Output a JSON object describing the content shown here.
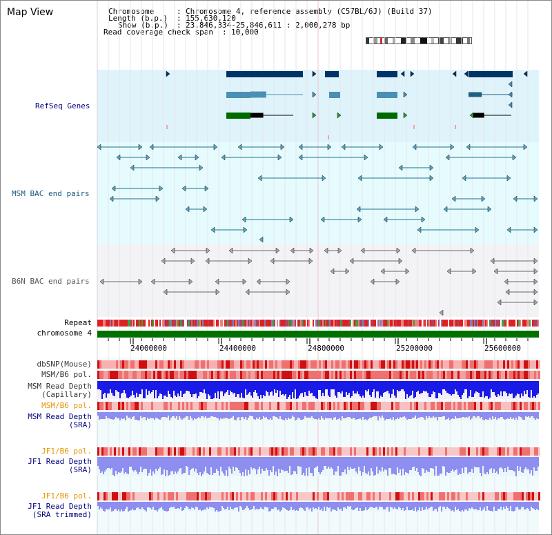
{
  "page": {
    "title": "Map View"
  },
  "header": {
    "chromosome_label": "Chromosome",
    "chromosome_value": "Chromosome 4, reference assembly (C57BL/6J) (Build 37)",
    "length_label": "Length (b.p.)",
    "length_value": "155,630,120",
    "show_label": "Show (b.p.)",
    "show_value": "23,846,334-25,846,611 : 2,000,278 bp",
    "coverage_label": "Read coverage check span",
    "coverage_value": "10,000",
    "separator": ":"
  },
  "tracks": {
    "refseq": "RefSeq Genes",
    "msm_bac": "MSM BAC end pairs",
    "b6n_bac": "B6N BAC end pairs",
    "repeat": "Repeat",
    "chromosome": "chromosome 4",
    "dbsnp": "dbSNP(Mouse)",
    "msm_b6_pol_1": "MSM/B6 pol.",
    "msm_read_depth_cap_1": "MSM Read Depth",
    "msm_read_depth_cap_2": "(Capillary)",
    "msm_b6_pol_2": "MSM/B6 pol.",
    "msm_read_depth_sra_1": "MSM Read Depth",
    "msm_read_depth_sra_2": "(SRA)",
    "jf1_b6_pol_1": "JF1/B6 pol.",
    "jf1_read_depth_sra_1": "JF1 Read Depth",
    "jf1_read_depth_sra_2": "(SRA)",
    "jf1_b6_pol_2": "JF1/B6 pol.",
    "jf1_read_depth_trim_1": "JF1 Read Depth",
    "jf1_read_depth_trim_2": "(SRA trimmed)"
  },
  "ruler": {
    "ticks": [
      "24000000",
      "24400000",
      "24800000",
      "25200000",
      "25600000"
    ]
  },
  "colors": {
    "refseq_bg": "#dff3fb",
    "msm_bac_bg": "#e5fbfd",
    "b6n_bac_bg": "#f2f2f5",
    "track_blue": "#000080",
    "track_orange": "#e69500",
    "chromosome_green": "#007000",
    "gene_dark": "#003366",
    "gene_mid": "#4b8fb5",
    "gene_green": "#006a00",
    "bac_teal": "#1f6f8b",
    "bac_gray": "#666666",
    "depth_blue": "#1a1ae6",
    "depth_light": "#8e8ef0"
  }
}
